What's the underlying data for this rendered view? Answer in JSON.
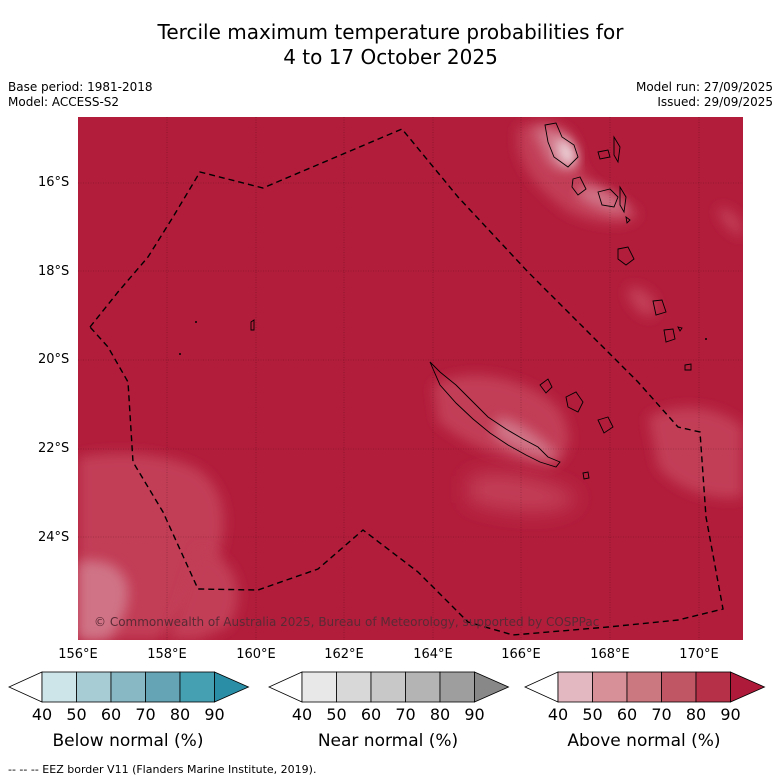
{
  "title_line1": "Tercile maximum temperature probabilities for",
  "title_line2": "4 to 17 October 2025",
  "meta_left": [
    "Base period: 1981-2018",
    "Model: ACCESS-S2"
  ],
  "meta_right": [
    "Model run: 27/09/2025",
    "Issued: 29/09/2025"
  ],
  "lat_labels": [
    "16°S",
    "18°S",
    "20°S",
    "22°S",
    "24°S"
  ],
  "lon_labels": [
    "156°E",
    "158°E",
    "160°E",
    "162°E",
    "164°E",
    "166°E",
    "168°E",
    "170°E"
  ],
  "copyright": "© Commonwealth of Australia 2025, Bureau of Meteorology, supported by COSPPac",
  "colorbars": [
    {
      "label": "Below normal (%)",
      "ticks": [
        "40",
        "50",
        "60",
        "70",
        "80",
        "90"
      ],
      "colors": [
        "#ffffff",
        "#cde4e8",
        "#a8ccd4",
        "#88b8c4",
        "#64a4b4",
        "#45a0b2",
        "#2a8ea6"
      ]
    },
    {
      "label": "Near normal (%)",
      "ticks": [
        "40",
        "50",
        "60",
        "70",
        "80",
        "90"
      ],
      "colors": [
        "#ffffff",
        "#e8e8e8",
        "#d8d8d8",
        "#c8c8c8",
        "#b4b4b4",
        "#9e9e9e",
        "#888888"
      ]
    },
    {
      "label": "Above normal (%)",
      "ticks": [
        "40",
        "50",
        "60",
        "70",
        "80",
        "90"
      ],
      "colors": [
        "#ffffff",
        "#e4b8c0",
        "#d89098",
        "#cc7880",
        "#c05664",
        "#b63048",
        "#ae1a3a"
      ]
    }
  ],
  "footnote": "--  --  -- EEZ border V11 (Flanders Marine Institute, 2019).",
  "map_colors": {
    "dominant": "#b21d3b",
    "lighter": "#c23e57",
    "light": "#d07386",
    "pale": "#e3b3bd"
  }
}
